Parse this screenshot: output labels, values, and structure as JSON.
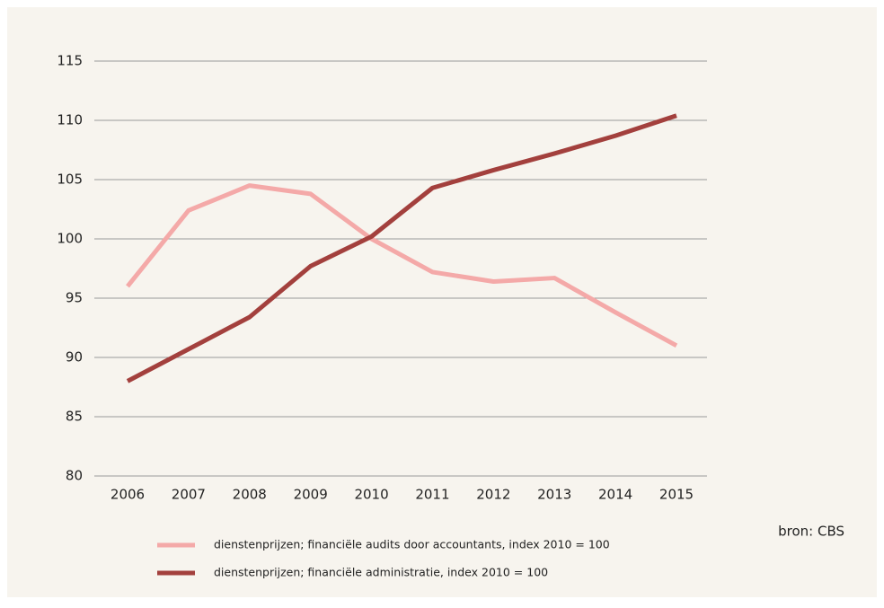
{
  "chart_data": {
    "type": "line",
    "categories": [
      "2006",
      "2007",
      "2008",
      "2009",
      "2010",
      "2011",
      "2012",
      "2013",
      "2014",
      "2015"
    ],
    "series": [
      {
        "name": "dienstenprijzen; financiële audits door accountants, index 2010 = 100",
        "color": "#f4a9a8",
        "values": [
          96.0,
          102.4,
          104.5,
          103.8,
          100.0,
          97.2,
          96.4,
          96.7,
          93.8,
          91.0
        ]
      },
      {
        "name": "dienstenprijzen; financiële administratie, index 2010 = 100",
        "color": "#a3403d",
        "values": [
          88.0,
          90.7,
          93.4,
          97.7,
          100.2,
          104.3,
          105.8,
          107.2,
          108.7,
          110.4
        ]
      }
    ],
    "ylim": [
      80,
      115
    ],
    "yticks": [
      80,
      85,
      90,
      95,
      100,
      105,
      110,
      115
    ],
    "grid": true,
    "source": "bron: CBS"
  }
}
